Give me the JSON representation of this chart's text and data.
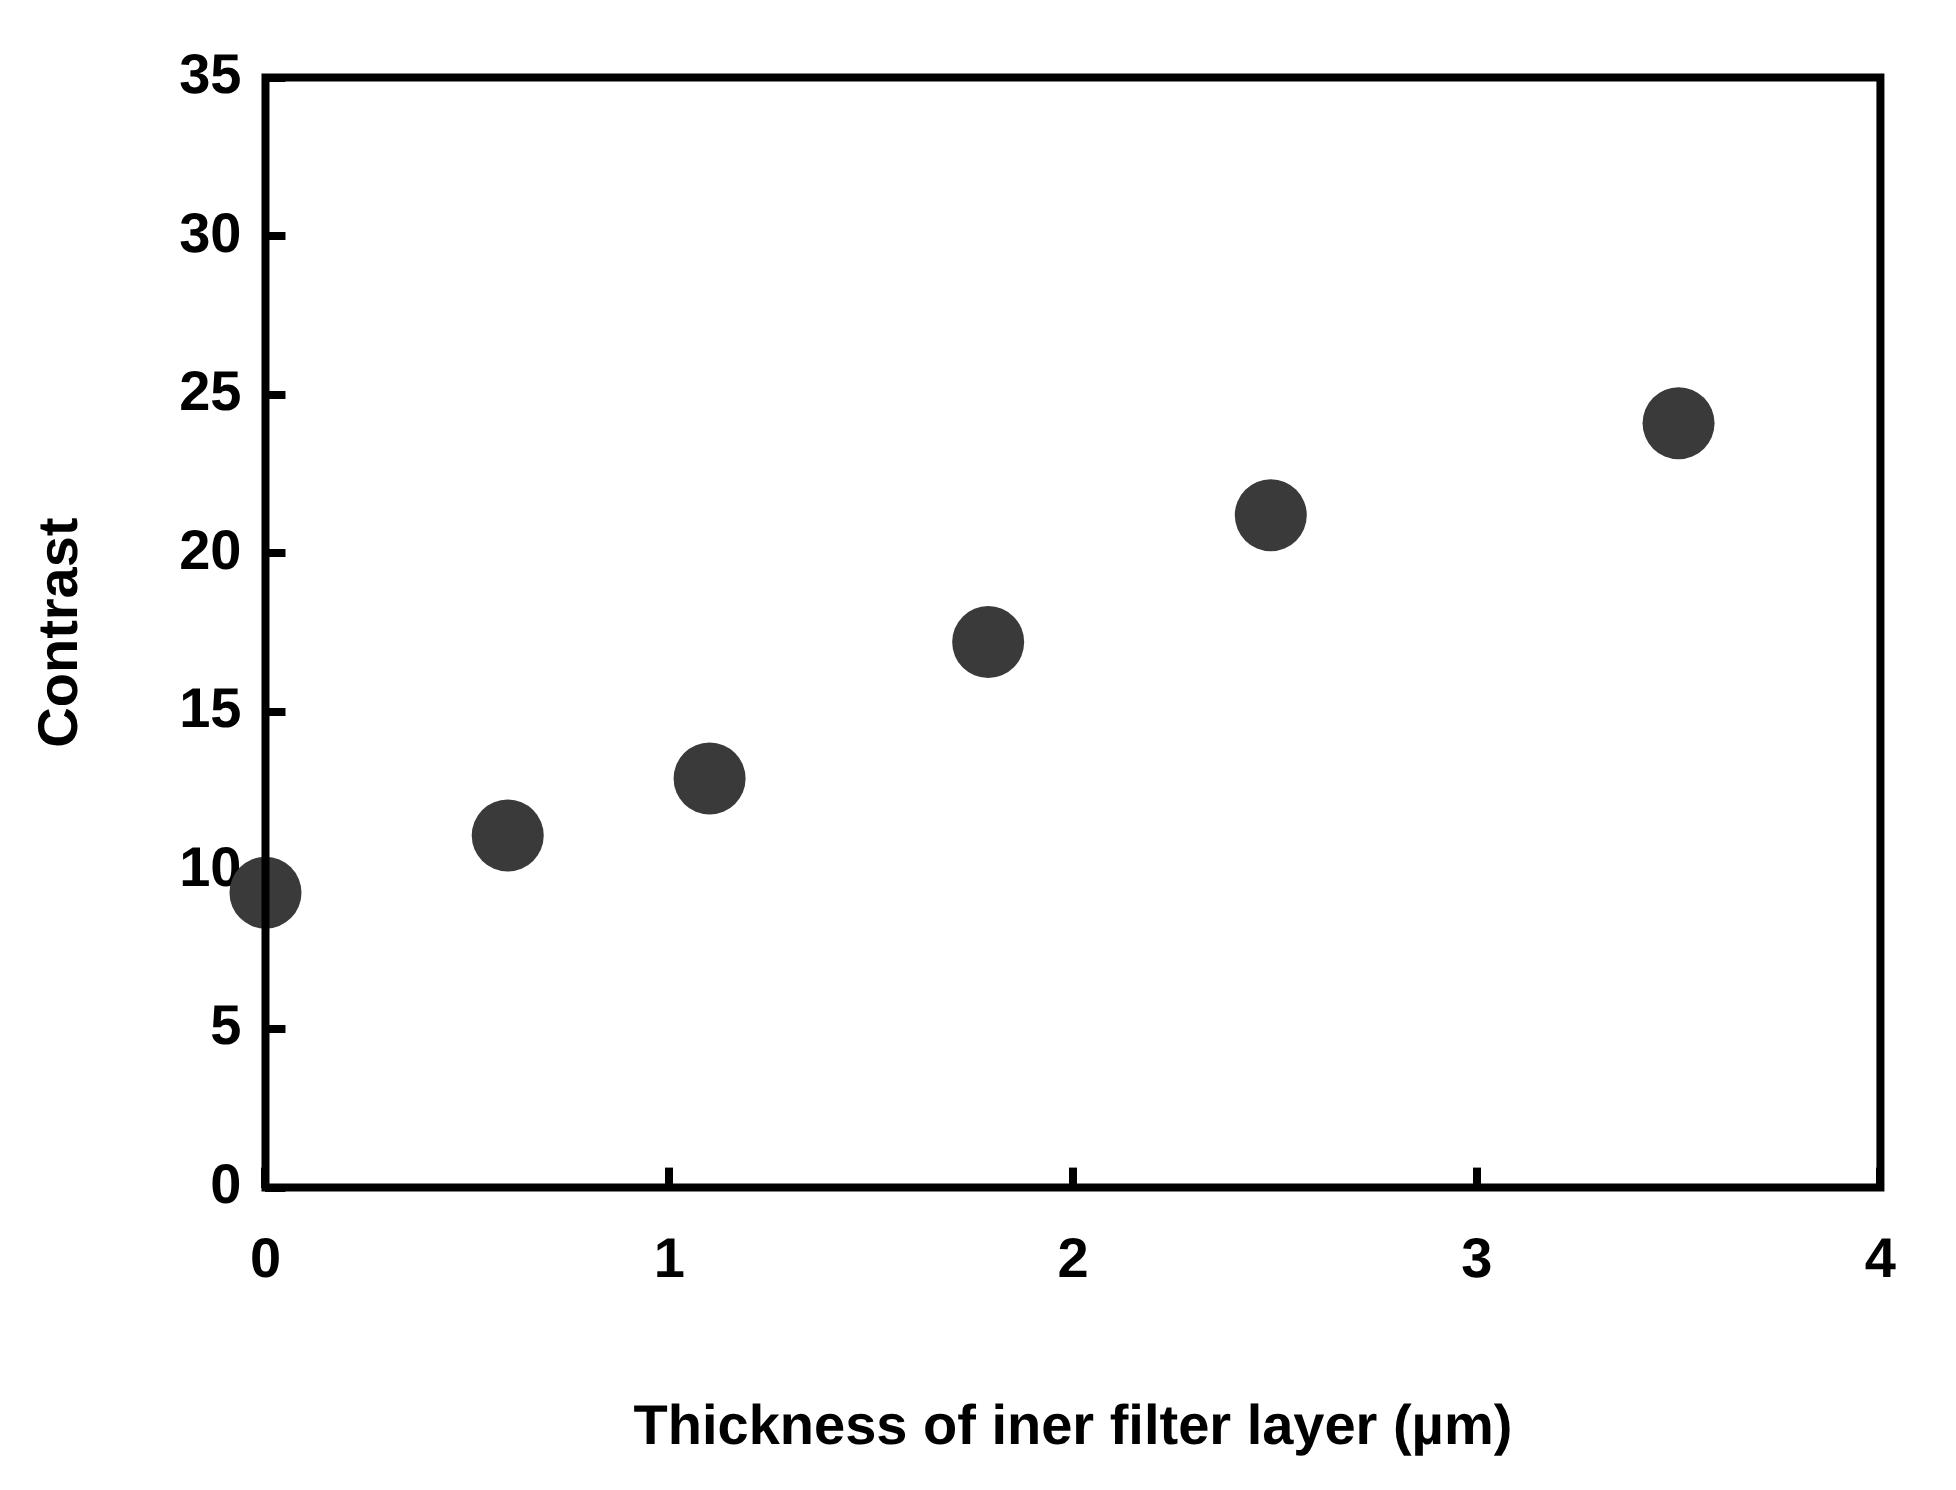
{
  "chart_data": {
    "type": "scatter",
    "xlabel": "Thickness of iner filter layer (µm)",
    "ylabel": "Contrast",
    "xlim": [
      0,
      4
    ],
    "xticks": [
      0,
      1,
      2,
      3,
      4
    ],
    "ylim": [
      0,
      35
    ],
    "yticks": [
      0,
      5,
      10,
      15,
      20,
      25,
      30,
      35
    ],
    "grid": false,
    "legend": false,
    "marker": "circle",
    "series": [
      {
        "color": "#3a3a3a",
        "x": [
          0,
          0.6,
          1.1,
          1.79,
          2.49,
          3.5
        ],
        "values": [
          9.3,
          11.1,
          12.9,
          17.2,
          21.2,
          24.1
        ]
      }
    ]
  }
}
